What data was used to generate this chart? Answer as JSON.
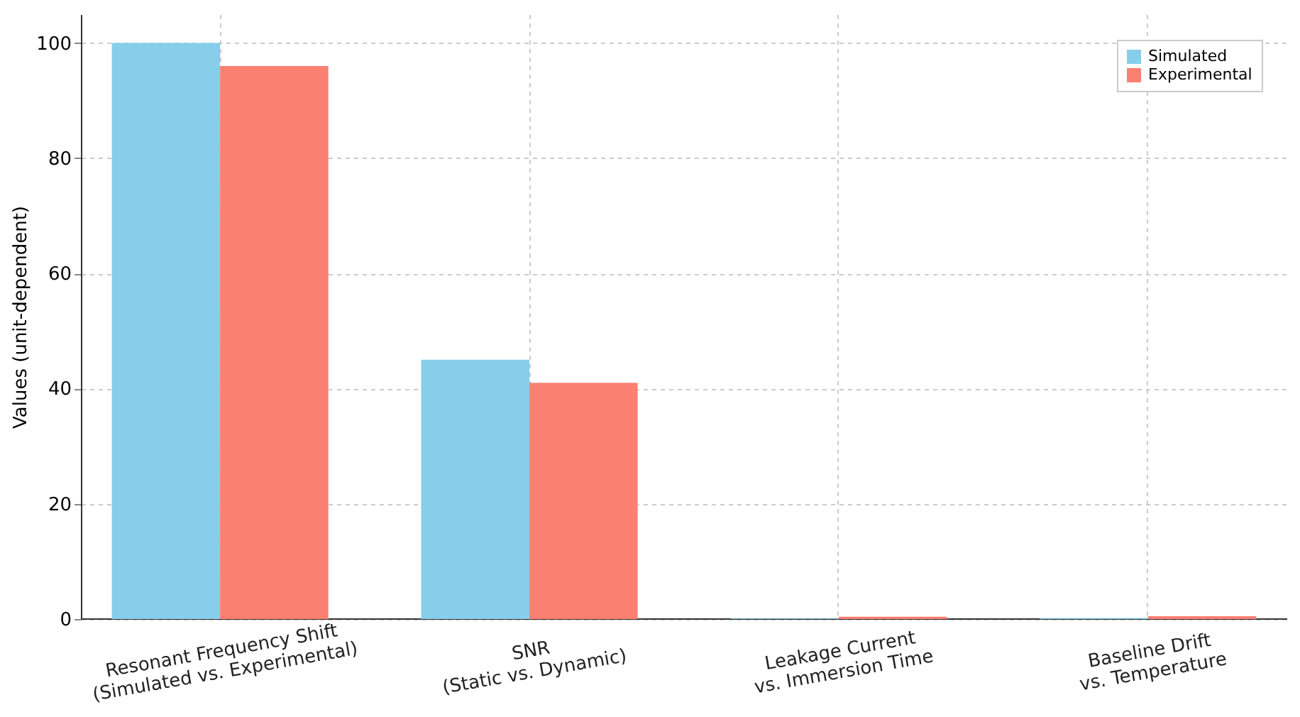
{
  "chart_data": {
    "type": "bar",
    "ylabel": "Values (unit-dependent)",
    "categories": [
      "Resonant Frequency Shift\n(Simulated vs. Experimental)",
      "SNR\n(Static vs. Dynamic)",
      "Leakage Current\nvs. Immersion Time",
      "Baseline Drift\nvs. Temperature"
    ],
    "series": [
      {
        "name": "Simulated",
        "color": "#87ceeb",
        "values": [
          100,
          45,
          0.1,
          0.2
        ]
      },
      {
        "name": "Experimental",
        "color": "#fa8072",
        "values": [
          96,
          41,
          0.4,
          0.5
        ]
      }
    ],
    "ylim": [
      0,
      105
    ],
    "yticks": [
      0,
      20,
      40,
      60,
      80,
      100
    ],
    "grid": true,
    "legend": "top right"
  }
}
